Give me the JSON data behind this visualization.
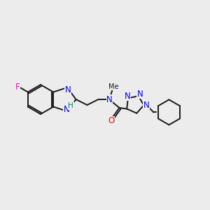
{
  "background_color": "#ececec",
  "bond_color": "#1a1a1a",
  "atom_colors": {
    "N": "#0000ff",
    "O": "#ff0000",
    "F": "#ff00cc",
    "H_label": "#008080",
    "C": "#1a1a1a"
  },
  "figsize": [
    3.0,
    3.0
  ],
  "dpi": 100
}
